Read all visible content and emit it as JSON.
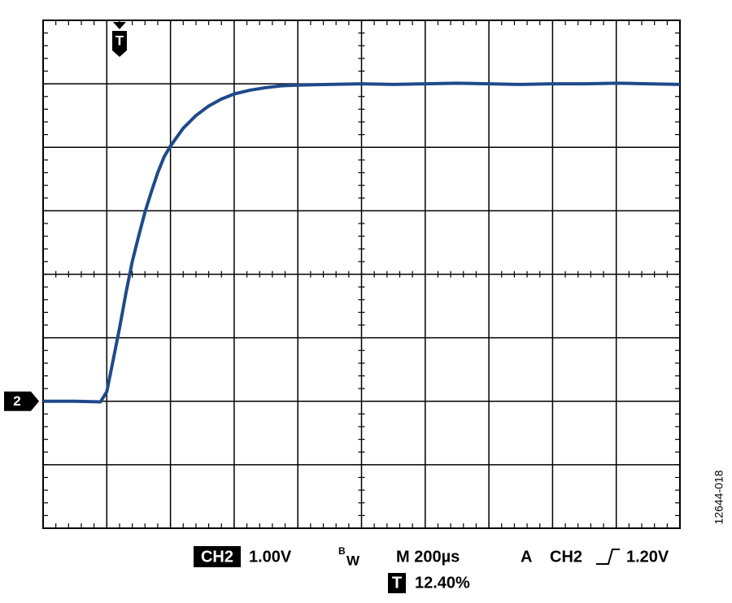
{
  "chart_data": {
    "type": "line",
    "x": [
      0,
      0.5,
      0.9,
      1.0,
      1.1,
      1.2,
      1.3,
      1.4,
      1.5,
      1.6,
      1.7,
      1.8,
      1.9,
      2.0,
      2.2,
      2.4,
      2.6,
      2.8,
      3.0,
      3.25,
      3.5,
      3.75,
      4.0,
      4.5,
      5,
      5.5,
      6,
      6.5,
      7,
      7.5,
      8,
      8.5,
      9,
      9.5,
      10
    ],
    "values": [
      2.0,
      2.0,
      1.99,
      2.15,
      2.65,
      3.15,
      3.7,
      4.2,
      4.6,
      4.98,
      5.3,
      5.6,
      5.85,
      6.02,
      6.3,
      6.5,
      6.65,
      6.76,
      6.84,
      6.9,
      6.94,
      6.97,
      6.98,
      6.99,
      7.0,
      6.99,
      7.0,
      7.01,
      7.0,
      6.99,
      7.0,
      7.0,
      7.01,
      7.0,
      6.99
    ],
    "color": "#1f4a8a",
    "xlim": [
      0,
      10
    ],
    "ylim": [
      0,
      8
    ],
    "xticks": [
      0,
      1,
      2,
      3,
      4,
      5,
      6,
      7,
      8,
      9,
      10
    ],
    "yticks": [
      0,
      1,
      2,
      3,
      4,
      5,
      6,
      7,
      8
    ],
    "grid": true,
    "trigger_marker": {
      "label": "T",
      "x": 1.2
    },
    "channel_marker": {
      "label": "2",
      "y": 2
    },
    "readout": {
      "channel": "CH2",
      "scale": "1.00V",
      "bw_b": "B",
      "bw_w": "W",
      "timebase": "M 200µs",
      "trigger_mode": "A",
      "trigger_channel": "CH2",
      "trigger_level": "1.20V",
      "trigger_pos_label": "T",
      "trigger_pos": "12.40%"
    },
    "figure_id": "12644-018"
  }
}
